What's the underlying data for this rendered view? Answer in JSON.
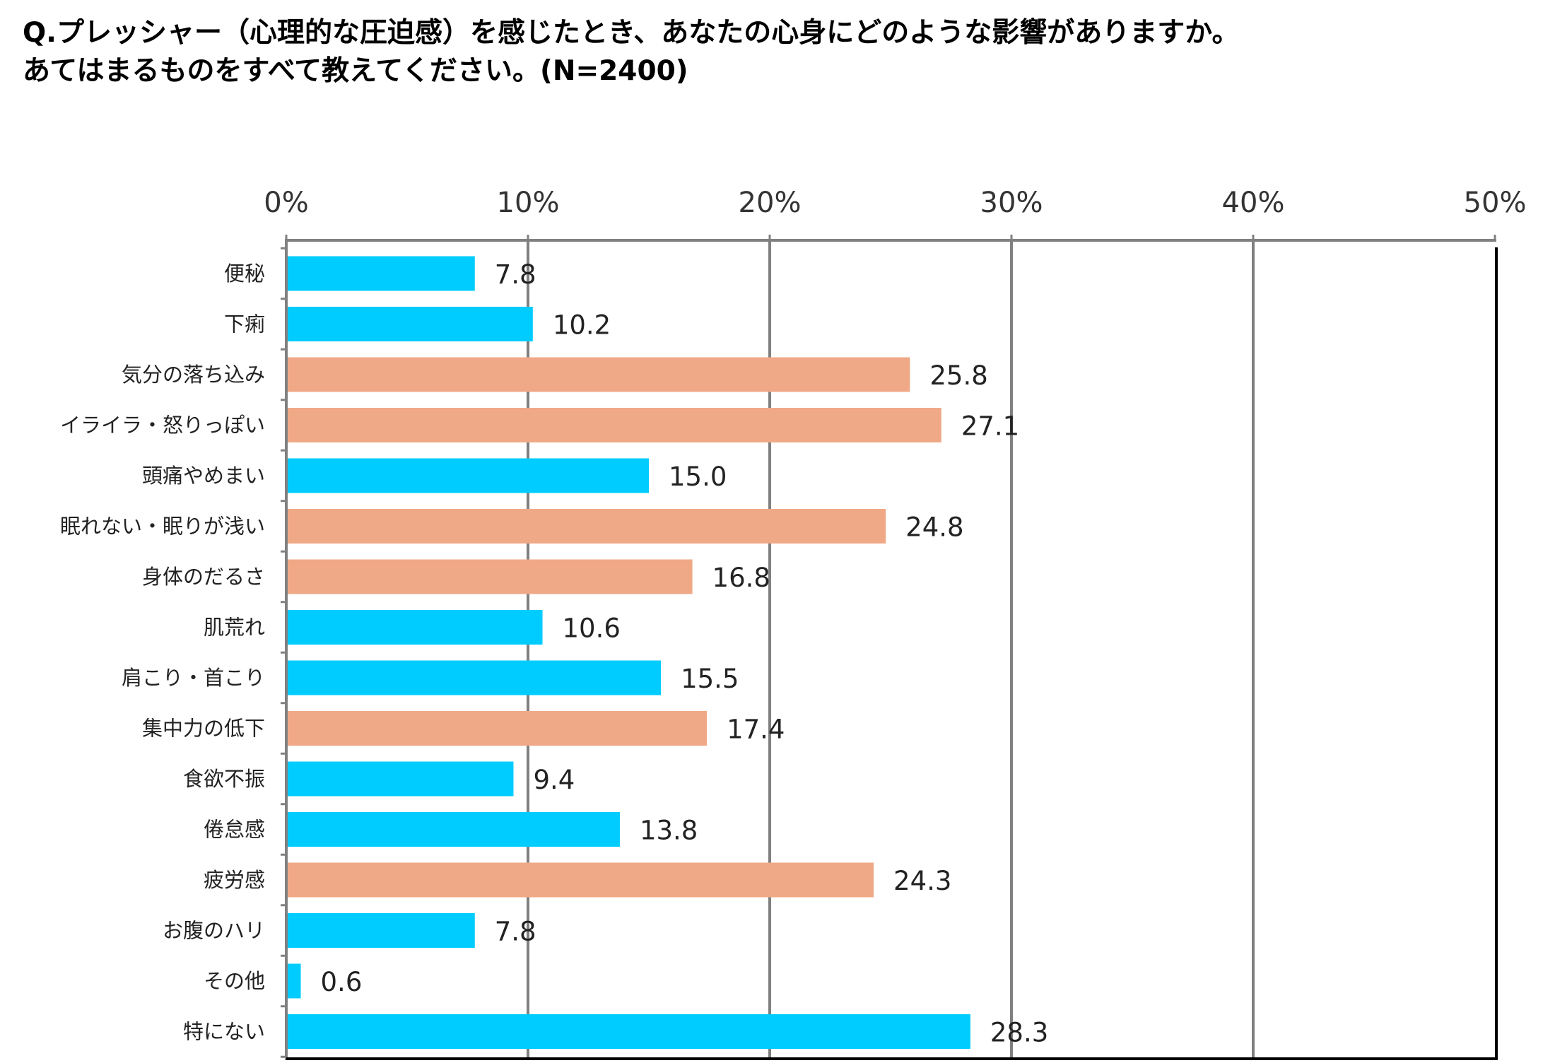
{
  "title": {
    "line1": "Q.プレッシャー（心理的な圧迫感）を感じたとき、あなたの心身にどのような影響がありますか。",
    "line2": "あてはまるものをすべて教えてください。(N=2400)"
  },
  "colors": {
    "blue": "#00CCFF",
    "salmon": "#F0A986",
    "grid": "#808080",
    "axis": "#000000"
  },
  "chart_data": {
    "type": "bar",
    "orientation": "horizontal",
    "title": "Q.プレッシャー（心理的な圧迫感）を感じたとき、あなたの心身にどのような影響がありますか。あてはまるものをすべて教えてください。(N=2400)",
    "xlim": [
      0,
      50
    ],
    "ticks": [
      0,
      10,
      20,
      30,
      40,
      50
    ],
    "tick_labels": [
      "0%",
      "10%",
      "20%",
      "30%",
      "40%",
      "50%"
    ],
    "grid": true,
    "categories": [
      "便秘",
      "下痢",
      "気分の落ち込み",
      "イライラ・怒りっぽい",
      "頭痛やめまい",
      "眠れない・眠りが浅い",
      "身体のだるさ",
      "肌荒れ",
      "肩こり・首こり",
      "集中力の低下",
      "食欲不振",
      "倦怠感",
      "疲労感",
      "お腹のハリ",
      "その他",
      "特にない"
    ],
    "values": [
      7.8,
      10.2,
      25.8,
      27.1,
      15.0,
      24.8,
      16.8,
      10.6,
      15.5,
      17.4,
      9.4,
      13.8,
      24.3,
      7.8,
      0.6,
      28.3
    ],
    "value_labels": [
      "7.8",
      "10.2",
      "25.8",
      "27.1",
      "15.0",
      "24.8",
      "16.8",
      "10.6",
      "15.5",
      "17.4",
      "9.4",
      "13.8",
      "24.3",
      "7.8",
      "0.6",
      "28.3"
    ],
    "highlight": [
      false,
      false,
      true,
      true,
      false,
      true,
      true,
      false,
      false,
      true,
      false,
      false,
      true,
      false,
      false,
      false
    ]
  }
}
